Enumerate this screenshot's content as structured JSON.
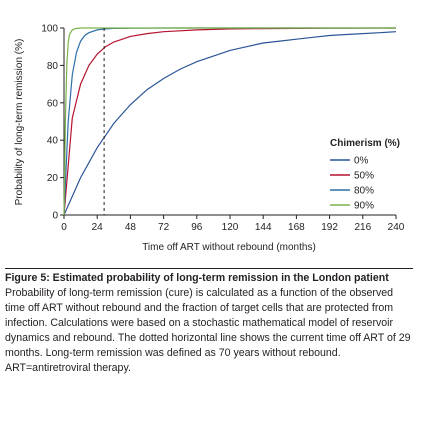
{
  "chart_data": {
    "type": "line",
    "ylabel": "Probability of long-term remission (%)",
    "xlabel": "Time off ART without rebound (months)",
    "xlim": [
      0,
      240
    ],
    "ylim": [
      0,
      100
    ],
    "xticks": [
      "0",
      "24",
      "48",
      "72",
      "96",
      "120",
      "144",
      "168",
      "192",
      "216",
      "240"
    ],
    "yticks": [
      "0",
      "20",
      "40",
      "60",
      "80",
      "100"
    ],
    "grid": false,
    "legend": {
      "title": "Chimerism (%)",
      "placement": "right"
    },
    "reference_line": {
      "x": 29,
      "style": "dashed"
    },
    "series": [
      {
        "name": "0%",
        "color": "#2b5597",
        "x": [
          0,
          12,
          24,
          36,
          48,
          60,
          72,
          84,
          96,
          108,
          120,
          132,
          144,
          156,
          168,
          180,
          192,
          204,
          216,
          228,
          240
        ],
        "y": [
          0,
          20,
          36,
          49,
          59,
          67,
          73,
          78,
          82,
          85,
          88,
          90,
          92,
          93,
          94,
          95,
          96,
          96.5,
          97,
          97.5,
          98
        ]
      },
      {
        "name": "50%",
        "color": "#b5122f",
        "x": [
          0,
          6,
          12,
          18,
          24,
          30,
          36,
          48,
          60,
          72,
          84,
          96,
          120,
          144,
          168,
          192,
          240
        ],
        "y": [
          0,
          52,
          70,
          80,
          86,
          90,
          92.5,
          95.5,
          97,
          98,
          98.5,
          99,
          99.5,
          99.7,
          99.8,
          99.9,
          100
        ]
      },
      {
        "name": "80%",
        "color": "#2c6fa8",
        "x": [
          0,
          3,
          6,
          9,
          12,
          15,
          18,
          24,
          30,
          36,
          48,
          72,
          120,
          240
        ],
        "y": [
          0,
          50,
          75,
          87,
          93,
          96,
          97.5,
          99,
          99.5,
          99.8,
          99.9,
          100,
          100,
          100
        ]
      },
      {
        "name": "90%",
        "color": "#7bb34a",
        "x": [
          0,
          1,
          2,
          3,
          4,
          6,
          8,
          12,
          24,
          240
        ],
        "y": [
          0,
          50,
          80,
          92,
          96.5,
          99,
          99.7,
          100,
          100,
          100
        ]
      }
    ]
  },
  "caption": {
    "title": "Figure 5: Estimated probability of long-term remission in the London patient",
    "body": "Probability of long-term remission (cure) is calculated as a function of the observed time off ART without rebound and the fraction of target cells that are protected from infection. Calculations were based on a stochastic mathematical model of reservoir dynamics and rebound. The dotted horizontal line shows the current time off ART of 29 months. Long-term remission was defined as 70 years without rebound. ART=antiretroviral therapy."
  }
}
